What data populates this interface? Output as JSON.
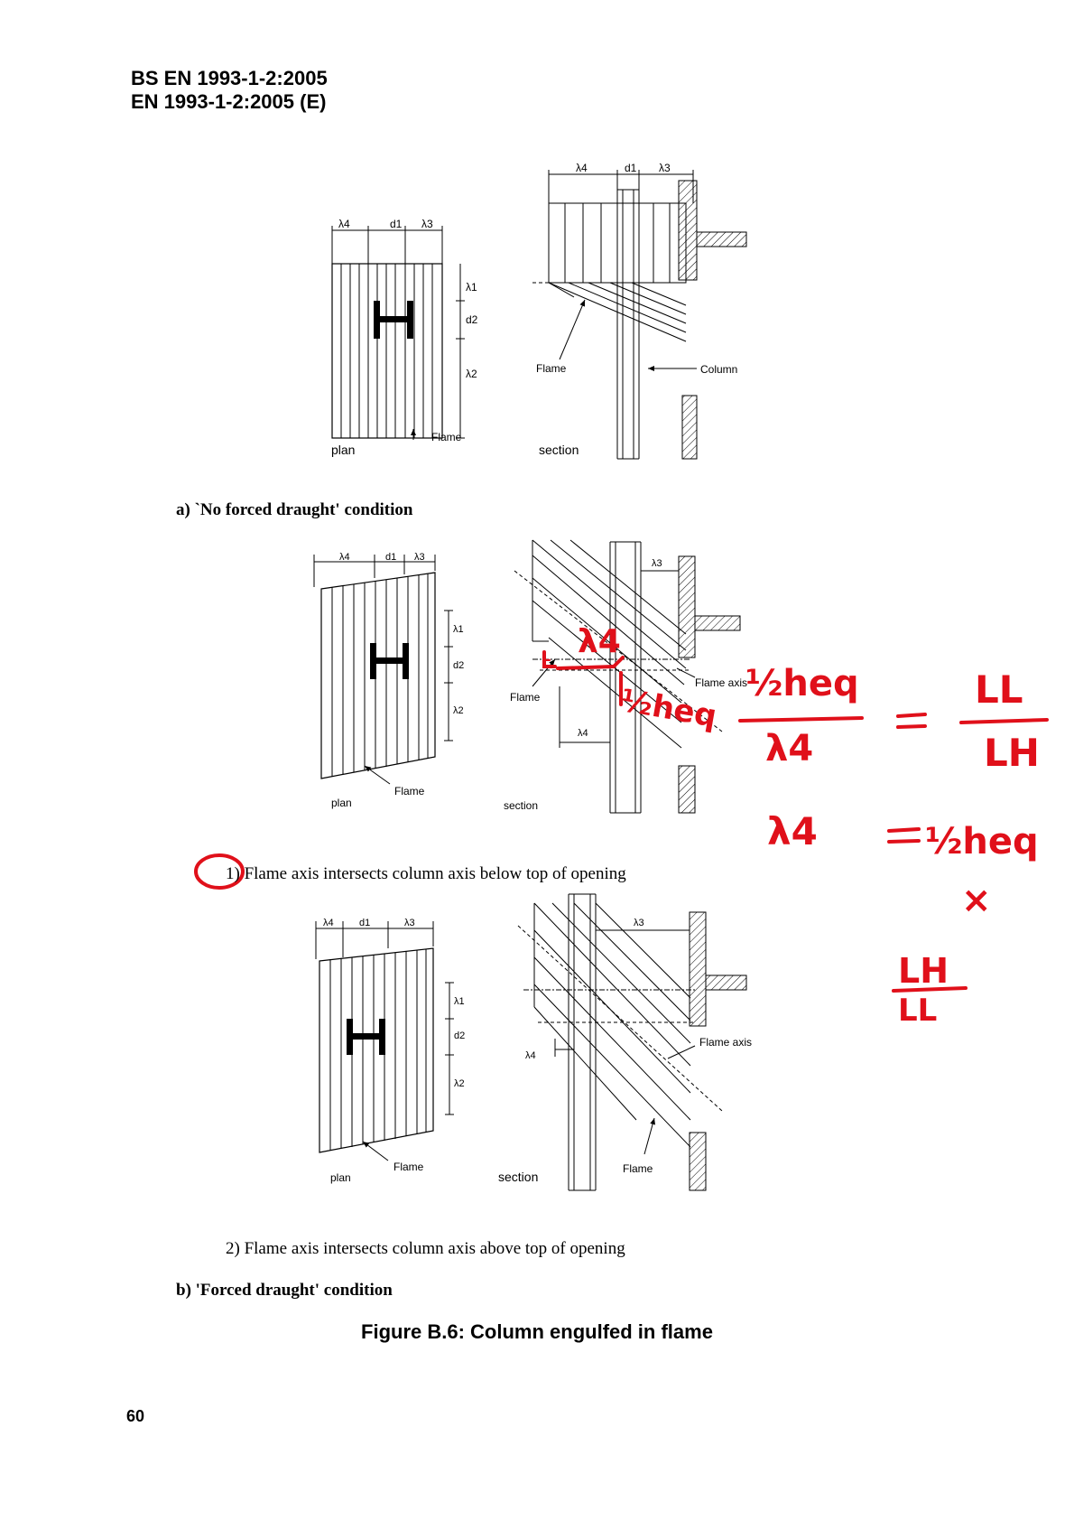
{
  "header": {
    "line1": "BS EN 1993-1-2:2005",
    "line2": "EN 1993-1-2:2005 (E)"
  },
  "diagrams": {
    "lambda1": "λ1",
    "lambda2": "λ2",
    "lambda3": "λ3",
    "lambda4": "λ4",
    "d1": "d1",
    "d2": "d2",
    "flame": "Flame",
    "column": "Column",
    "flame_axis": "Flame axis",
    "plan": "plan",
    "section": "section"
  },
  "conditions": {
    "a": "a)  `No forced draught' condition",
    "b1": "1) Flame axis intersects column axis below top of opening",
    "b2": "2) Flame axis intersects column axis above top of opening",
    "b": "b) 'Forced draught' condition"
  },
  "figure_caption": "Figure B.6:  Column engulfed in flame",
  "page_number": "60",
  "handwriting": {
    "color": "#e0101a",
    "top_half_heq": "½heq",
    "lambda4_over": "λ4",
    "L_small": "L",
    "frac_num": "½heq",
    "frac_den": "λ4",
    "equals": "=",
    "LL": "LL",
    "LH": "LH",
    "line2_left": "λ4",
    "line2_eq": "=",
    "line2_right": "½heq",
    "times": "×",
    "LH2": "LH",
    "LL2": "LL"
  }
}
